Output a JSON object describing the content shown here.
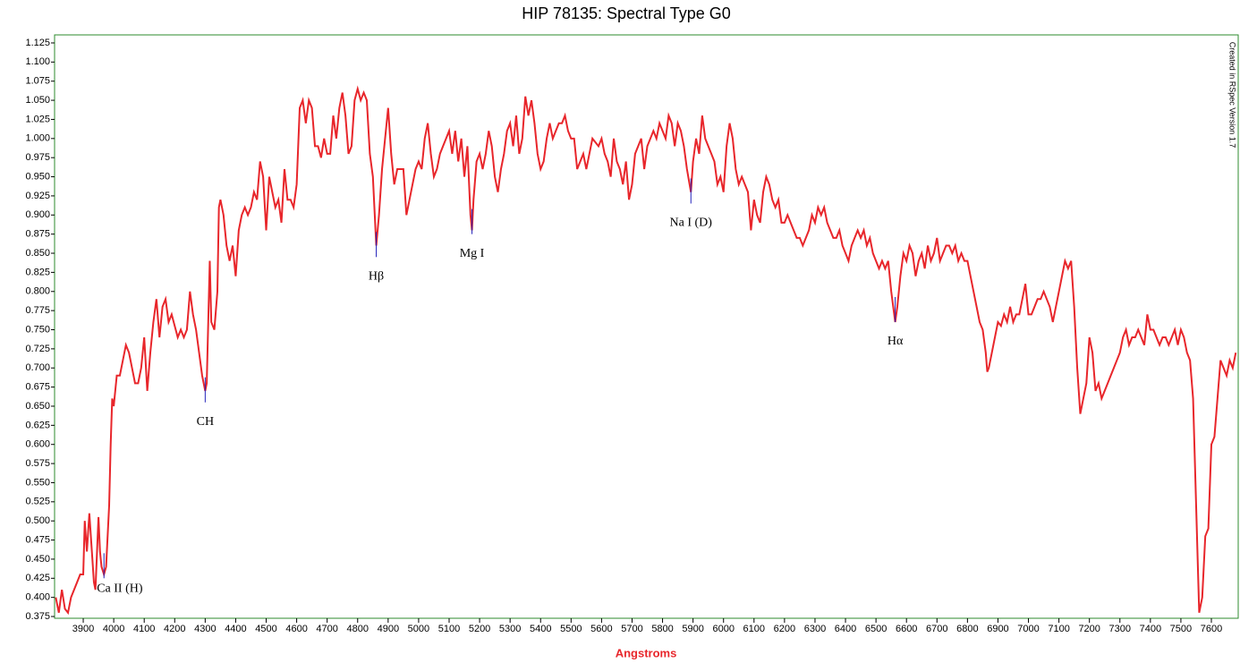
{
  "chart_data": {
    "type": "line",
    "title": "HIP 78135: Spectral Type G0",
    "x_label": "Angstroms",
    "side_note": "Created in RSpec Version 1.7",
    "color": "#e8262b",
    "annotation_color": "#2222bb",
    "xlim": [
      3806,
      7688
    ],
    "ylim": [
      0.3727,
      1.1355
    ],
    "xticks": [
      3900,
      4000,
      4100,
      4200,
      4300,
      4400,
      4500,
      4600,
      4700,
      4800,
      4900,
      5000,
      5100,
      5200,
      5300,
      5400,
      5500,
      5600,
      5700,
      5800,
      5900,
      6000,
      6100,
      6200,
      6300,
      6400,
      6500,
      6600,
      6700,
      6800,
      6900,
      7000,
      7100,
      7200,
      7300,
      7400,
      7500,
      7600
    ],
    "yticks": [
      {
        "value": 0.375,
        "label": "0.375"
      },
      {
        "value": 0.4,
        "label": "0.400"
      },
      {
        "value": 0.425,
        "label": "0.425"
      },
      {
        "value": 0.45,
        "label": "0.450"
      },
      {
        "value": 0.475,
        "label": "0.475"
      },
      {
        "value": 0.5,
        "label": "0.500"
      },
      {
        "value": 0.525,
        "label": "0.525"
      },
      {
        "value": 0.55,
        "label": "0.550"
      },
      {
        "value": 0.575,
        "label": "0.575"
      },
      {
        "value": 0.6,
        "label": "0.600"
      },
      {
        "value": 0.625,
        "label": "0.625"
      },
      {
        "value": 0.65,
        "label": "0.650"
      },
      {
        "value": 0.675,
        "label": "0.675"
      },
      {
        "value": 0.7,
        "label": "0.700"
      },
      {
        "value": 0.725,
        "label": "0.725"
      },
      {
        "value": 0.75,
        "label": "0.750"
      },
      {
        "value": 0.775,
        "label": "0.775"
      },
      {
        "value": 0.8,
        "label": "0.800"
      },
      {
        "value": 0.825,
        "label": "0.825"
      },
      {
        "value": 0.85,
        "label": "0.850"
      },
      {
        "value": 0.875,
        "label": "0.875"
      },
      {
        "value": 0.9,
        "label": "0.900"
      },
      {
        "value": 0.925,
        "label": "0.925"
      },
      {
        "value": 0.95,
        "label": "0.950"
      },
      {
        "value": 0.975,
        "label": "0.975"
      },
      {
        "value": 1.0,
        "label": "1.000"
      },
      {
        "value": 1.025,
        "label": "1.025"
      },
      {
        "value": 1.05,
        "label": "1.050"
      },
      {
        "value": 1.075,
        "label": "1.075"
      },
      {
        "value": 1.1,
        "label": "1.100"
      },
      {
        "value": 1.125,
        "label": "1.125"
      }
    ],
    "annotations": [
      {
        "text": "Ca II (H)",
        "x": 3968,
        "y": 0.425
      },
      {
        "text": "CH",
        "x": 4300,
        "y": 0.655
      },
      {
        "text": "Hβ",
        "x": 4861,
        "y": 0.845
      },
      {
        "text": "Mg I",
        "x": 5175,
        "y": 0.875
      },
      {
        "text": "Na I (D)",
        "x": 5893,
        "y": 0.915
      },
      {
        "text": "Hα",
        "x": 6563,
        "y": 0.76
      }
    ],
    "x": [
      3810,
      3820,
      3830,
      3840,
      3850,
      3860,
      3870,
      3880,
      3890,
      3900,
      3905,
      3912,
      3920,
      3930,
      3935,
      3940,
      3950,
      3955,
      3960,
      3968,
      3975,
      3985,
      3990,
      3995,
      4000,
      4010,
      4020,
      4030,
      4040,
      4050,
      4060,
      4070,
      4080,
      4090,
      4100,
      4110,
      4120,
      4130,
      4140,
      4150,
      4160,
      4170,
      4180,
      4190,
      4200,
      4210,
      4220,
      4230,
      4240,
      4250,
      4260,
      4270,
      4280,
      4290,
      4300,
      4305,
      4310,
      4315,
      4320,
      4330,
      4340,
      4345,
      4350,
      4360,
      4370,
      4380,
      4390,
      4400,
      4410,
      4420,
      4430,
      4440,
      4450,
      4460,
      4470,
      4480,
      4490,
      4500,
      4510,
      4520,
      4530,
      4540,
      4550,
      4560,
      4570,
      4580,
      4590,
      4600,
      4610,
      4620,
      4630,
      4640,
      4650,
      4660,
      4670,
      4680,
      4690,
      4700,
      4710,
      4720,
      4730,
      4740,
      4750,
      4760,
      4770,
      4780,
      4790,
      4800,
      4810,
      4820,
      4830,
      4840,
      4850,
      4861,
      4870,
      4880,
      4890,
      4900,
      4910,
      4920,
      4930,
      4940,
      4950,
      4960,
      4970,
      4980,
      4990,
      5000,
      5010,
      5020,
      5030,
      5040,
      5050,
      5060,
      5070,
      5080,
      5090,
      5100,
      5110,
      5120,
      5130,
      5140,
      5150,
      5160,
      5170,
      5175,
      5180,
      5190,
      5200,
      5210,
      5220,
      5230,
      5240,
      5250,
      5260,
      5270,
      5280,
      5290,
      5300,
      5310,
      5320,
      5330,
      5340,
      5350,
      5360,
      5370,
      5380,
      5390,
      5400,
      5410,
      5420,
      5430,
      5440,
      5450,
      5460,
      5470,
      5480,
      5490,
      5500,
      5510,
      5520,
      5530,
      5540,
      5550,
      5560,
      5570,
      5580,
      5590,
      5600,
      5610,
      5620,
      5630,
      5640,
      5650,
      5660,
      5670,
      5680,
      5690,
      5700,
      5710,
      5720,
      5730,
      5740,
      5750,
      5760,
      5770,
      5780,
      5790,
      5800,
      5810,
      5820,
      5830,
      5840,
      5850,
      5860,
      5870,
      5880,
      5893,
      5900,
      5910,
      5920,
      5930,
      5940,
      5950,
      5960,
      5970,
      5980,
      5990,
      6000,
      6010,
      6020,
      6030,
      6040,
      6050,
      6060,
      6070,
      6080,
      6090,
      6100,
      6110,
      6120,
      6130,
      6140,
      6150,
      6160,
      6170,
      6180,
      6190,
      6200,
      6210,
      6220,
      6230,
      6240,
      6250,
      6260,
      6270,
      6280,
      6290,
      6300,
      6310,
      6320,
      6330,
      6340,
      6350,
      6360,
      6370,
      6380,
      6390,
      6400,
      6410,
      6420,
      6430,
      6440,
      6450,
      6460,
      6470,
      6480,
      6490,
      6500,
      6510,
      6520,
      6530,
      6540,
      6550,
      6563,
      6570,
      6580,
      6590,
      6600,
      6610,
      6620,
      6630,
      6640,
      6650,
      6660,
      6670,
      6680,
      6690,
      6700,
      6710,
      6720,
      6730,
      6740,
      6750,
      6760,
      6770,
      6780,
      6790,
      6800,
      6810,
      6820,
      6830,
      6840,
      6850,
      6860,
      6865,
      6870,
      6880,
      6890,
      6900,
      6910,
      6920,
      6930,
      6940,
      6950,
      6960,
      6970,
      6980,
      6990,
      7000,
      7010,
      7020,
      7030,
      7040,
      7050,
      7060,
      7070,
      7080,
      7090,
      7100,
      7110,
      7120,
      7130,
      7140,
      7150,
      7160,
      7170,
      7180,
      7190,
      7200,
      7210,
      7220,
      7230,
      7240,
      7250,
      7260,
      7270,
      7280,
      7290,
      7300,
      7310,
      7320,
      7330,
      7340,
      7350,
      7360,
      7370,
      7380,
      7390,
      7400,
      7410,
      7420,
      7430,
      7440,
      7450,
      7460,
      7470,
      7480,
      7490,
      7500,
      7510,
      7520,
      7530,
      7540,
      7550,
      7560,
      7570,
      7580,
      7590,
      7600,
      7610,
      7620,
      7630,
      7640,
      7650,
      7660,
      7670,
      7680
    ],
    "values": [
      0.4,
      0.38,
      0.41,
      0.385,
      0.38,
      0.4,
      0.41,
      0.42,
      0.43,
      0.43,
      0.5,
      0.46,
      0.51,
      0.45,
      0.42,
      0.41,
      0.505,
      0.46,
      0.44,
      0.43,
      0.44,
      0.52,
      0.6,
      0.66,
      0.65,
      0.69,
      0.69,
      0.71,
      0.73,
      0.72,
      0.7,
      0.68,
      0.68,
      0.7,
      0.74,
      0.67,
      0.72,
      0.76,
      0.79,
      0.74,
      0.78,
      0.79,
      0.76,
      0.77,
      0.755,
      0.74,
      0.75,
      0.74,
      0.75,
      0.8,
      0.77,
      0.75,
      0.72,
      0.69,
      0.67,
      0.68,
      0.76,
      0.84,
      0.76,
      0.75,
      0.8,
      0.91,
      0.92,
      0.9,
      0.86,
      0.84,
      0.86,
      0.82,
      0.88,
      0.9,
      0.91,
      0.9,
      0.91,
      0.93,
      0.92,
      0.97,
      0.95,
      0.88,
      0.95,
      0.93,
      0.91,
      0.92,
      0.89,
      0.96,
      0.92,
      0.92,
      0.91,
      0.94,
      1.04,
      1.05,
      1.02,
      1.05,
      1.04,
      0.99,
      0.99,
      0.975,
      1.0,
      0.98,
      0.98,
      1.03,
      1.0,
      1.04,
      1.06,
      1.03,
      0.98,
      0.99,
      1.05,
      1.065,
      1.05,
      1.06,
      1.05,
      0.98,
      0.95,
      0.86,
      0.9,
      0.96,
      1.0,
      1.04,
      0.98,
      0.94,
      0.96,
      0.96,
      0.96,
      0.9,
      0.92,
      0.94,
      0.96,
      0.97,
      0.96,
      1.0,
      1.02,
      0.98,
      0.95,
      0.96,
      0.98,
      0.99,
      1.0,
      1.01,
      0.98,
      1.01,
      0.97,
      1.0,
      0.95,
      0.99,
      0.9,
      0.88,
      0.92,
      0.97,
      0.98,
      0.96,
      0.98,
      1.01,
      0.99,
      0.95,
      0.93,
      0.96,
      0.98,
      1.01,
      1.02,
      0.99,
      1.03,
      0.98,
      1.0,
      1.055,
      1.03,
      1.05,
      1.02,
      0.98,
      0.96,
      0.97,
      1.0,
      1.02,
      1.0,
      1.01,
      1.02,
      1.02,
      1.03,
      1.01,
      1.0,
      1.0,
      0.96,
      0.97,
      0.98,
      0.96,
      0.98,
      1.0,
      0.995,
      0.99,
      1.0,
      0.98,
      0.97,
      0.95,
      1.0,
      0.97,
      0.96,
      0.94,
      0.97,
      0.92,
      0.94,
      0.98,
      0.99,
      1.0,
      0.96,
      0.99,
      1.0,
      1.01,
      1.0,
      1.02,
      1.01,
      1.0,
      1.03,
      1.02,
      0.99,
      1.02,
      1.01,
      0.99,
      0.96,
      0.93,
      0.97,
      1.0,
      0.98,
      1.03,
      1.0,
      0.99,
      0.98,
      0.97,
      0.94,
      0.95,
      0.93,
      0.99,
      1.02,
      1.0,
      0.96,
      0.94,
      0.95,
      0.94,
      0.93,
      0.88,
      0.92,
      0.9,
      0.89,
      0.93,
      0.95,
      0.94,
      0.92,
      0.91,
      0.92,
      0.89,
      0.89,
      0.9,
      0.89,
      0.88,
      0.87,
      0.87,
      0.86,
      0.87,
      0.88,
      0.9,
      0.89,
      0.91,
      0.9,
      0.91,
      0.89,
      0.88,
      0.87,
      0.87,
      0.88,
      0.86,
      0.85,
      0.84,
      0.86,
      0.87,
      0.88,
      0.87,
      0.88,
      0.86,
      0.87,
      0.85,
      0.84,
      0.83,
      0.84,
      0.83,
      0.84,
      0.8,
      0.76,
      0.78,
      0.82,
      0.85,
      0.84,
      0.86,
      0.85,
      0.82,
      0.84,
      0.85,
      0.83,
      0.86,
      0.84,
      0.85,
      0.87,
      0.84,
      0.85,
      0.86,
      0.86,
      0.85,
      0.86,
      0.84,
      0.85,
      0.84,
      0.84,
      0.82,
      0.8,
      0.78,
      0.76,
      0.75,
      0.72,
      0.695,
      0.7,
      0.72,
      0.74,
      0.76,
      0.755,
      0.77,
      0.76,
      0.78,
      0.76,
      0.77,
      0.77,
      0.79,
      0.81,
      0.77,
      0.77,
      0.78,
      0.79,
      0.79,
      0.8,
      0.79,
      0.78,
      0.76,
      0.78,
      0.8,
      0.82,
      0.84,
      0.83,
      0.84,
      0.78,
      0.7,
      0.64,
      0.66,
      0.68,
      0.74,
      0.72,
      0.67,
      0.68,
      0.66,
      0.67,
      0.68,
      0.69,
      0.7,
      0.71,
      0.72,
      0.74,
      0.75,
      0.73,
      0.74,
      0.74,
      0.75,
      0.74,
      0.73,
      0.77,
      0.75,
      0.75,
      0.74,
      0.73,
      0.74,
      0.74,
      0.73,
      0.74,
      0.75,
      0.73,
      0.75,
      0.74,
      0.72,
      0.71,
      0.66,
      0.52,
      0.38,
      0.4,
      0.48,
      0.49,
      0.6,
      0.61,
      0.66,
      0.71,
      0.7,
      0.69,
      0.71,
      0.7,
      0.72
    ]
  }
}
